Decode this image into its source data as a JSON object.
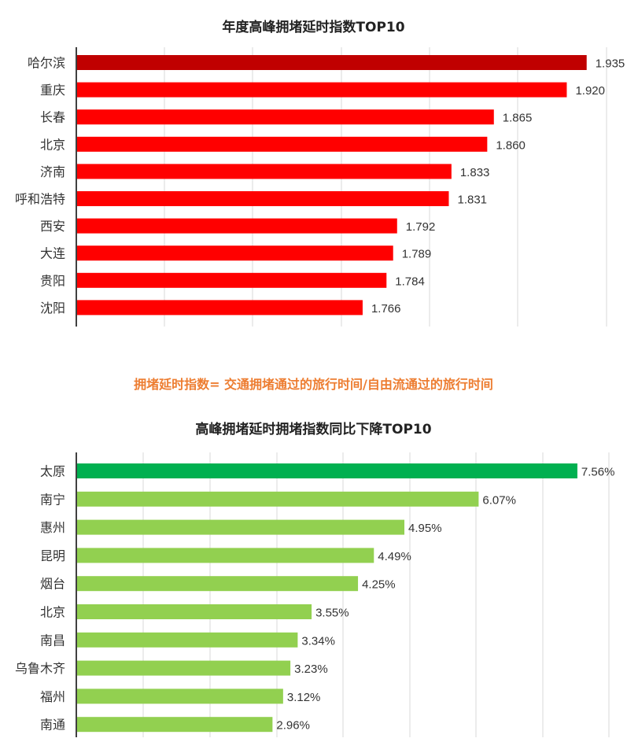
{
  "chart_data": [
    {
      "type": "bar",
      "orientation": "horizontal",
      "title": "年度高峰拥堵延时指数TOP10",
      "categories": [
        "哈尔滨",
        "重庆",
        "长春",
        "北京",
        "济南",
        "呼和浩特",
        "西安",
        "大连",
        "贵阳",
        "沈阳"
      ],
      "values": [
        1.935,
        1.92,
        1.865,
        1.86,
        1.833,
        1.831,
        1.792,
        1.789,
        1.784,
        1.766
      ],
      "labels": [
        "1.935",
        "1.920",
        "1.865",
        "1.860",
        "1.833",
        "1.831",
        "1.792",
        "1.789",
        "1.784",
        "1.766"
      ],
      "colors": [
        "#C00000",
        "#FF0000",
        "#FF0000",
        "#FF0000",
        "#FF0000",
        "#FF0000",
        "#FF0000",
        "#FF0000",
        "#FF0000",
        "#FF0000"
      ],
      "xlim": [
        1.55,
        1.95
      ],
      "grid": true
    },
    {
      "type": "bar",
      "orientation": "horizontal",
      "title": "高峰拥堵延时拥堵指数同比下降TOP10",
      "categories": [
        "太原",
        "南宁",
        "惠州",
        "昆明",
        "烟台",
        "北京",
        "南昌",
        "乌鲁木齐",
        "福州",
        "南通"
      ],
      "values": [
        7.56,
        6.07,
        4.95,
        4.49,
        4.25,
        3.55,
        3.34,
        3.23,
        3.12,
        2.96
      ],
      "labels": [
        "7.56%",
        "6.07%",
        "4.95%",
        "4.49%",
        "4.25%",
        "3.55%",
        "3.34%",
        "3.23%",
        "3.12%",
        "2.96%"
      ],
      "colors": [
        "#00B050",
        "#92D050",
        "#92D050",
        "#92D050",
        "#92D050",
        "#92D050",
        "#92D050",
        "#92D050",
        "#92D050",
        "#92D050"
      ],
      "xlim": [
        0,
        8
      ],
      "grid": true
    }
  ],
  "note": {
    "text": "拥堵延时指数= 交通拥堵通过的旅行时间/自由流通过的旅行时间",
    "color": "#ED7D31"
  }
}
